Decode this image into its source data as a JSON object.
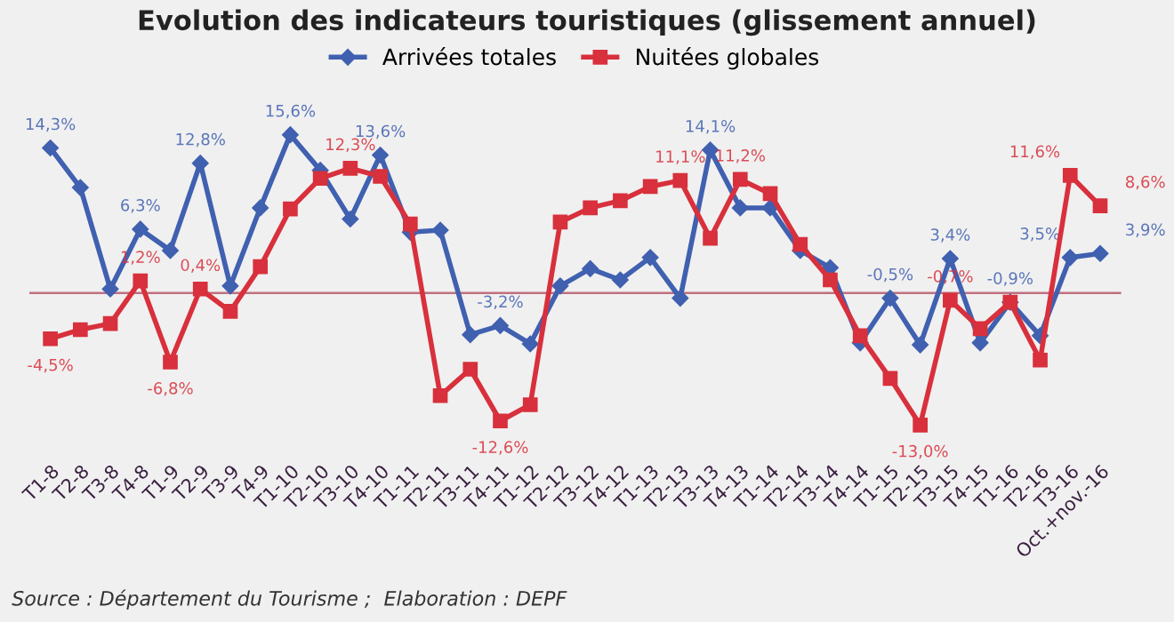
{
  "chart_data": {
    "type": "line",
    "title": "Evolution des indicateurs touristiques (glissement annuel)",
    "categories": [
      "T1-8",
      "T2-8",
      "T3-8",
      "T4-8",
      "T1-9",
      "T2-9",
      "T3-9",
      "T4-9",
      "T1-10",
      "T2-10",
      "T3-10",
      "T4-10",
      "T1-11",
      "T2-11",
      "T3-11",
      "T4-11",
      "T1-12",
      "T2-12",
      "T3-12",
      "T4-12",
      "T1-13",
      "T2-13",
      "T3-13",
      "T4-13",
      "T1-14",
      "T2-14",
      "T3-14",
      "T4-14",
      "T1-15",
      "T2-15",
      "T3-15",
      "T4-15",
      "T1-16",
      "T2-16",
      "T3-16",
      "Oct.+nov.-16"
    ],
    "series": [
      {
        "name": "Arrivées totales",
        "color": "#4060b0",
        "marker": "diamond",
        "values": [
          14.3,
          10.4,
          0.4,
          6.3,
          4.2,
          12.8,
          0.7,
          8.4,
          15.6,
          12.1,
          7.3,
          13.6,
          6.0,
          6.2,
          -4.1,
          -3.2,
          -5.0,
          0.7,
          2.4,
          1.3,
          3.5,
          -0.5,
          14.1,
          8.4,
          8.4,
          4.2,
          2.5,
          -4.9,
          -0.5,
          -5.1,
          3.4,
          -4.9,
          -0.9,
          -4.2,
          3.5,
          3.9
        ],
        "value_labels": [
          "14,3%",
          null,
          null,
          "6,3%",
          null,
          "12,8%",
          null,
          null,
          "15,6%",
          null,
          null,
          "13,6%",
          null,
          null,
          null,
          "-3,2%",
          null,
          null,
          null,
          null,
          null,
          null,
          "14,1%",
          null,
          null,
          null,
          null,
          null,
          "-0,5%",
          null,
          "3,4%",
          null,
          "-0,9%",
          null,
          "3,5%",
          "3,9%"
        ]
      },
      {
        "name": "Nuitées globales",
        "color": "#d8303c",
        "marker": "square",
        "values": [
          -4.5,
          -3.6,
          -3.0,
          1.2,
          -6.8,
          0.4,
          -1.8,
          2.6,
          8.3,
          11.3,
          12.3,
          11.5,
          6.8,
          -10.1,
          -7.5,
          -12.6,
          -11.0,
          7.0,
          8.4,
          9.1,
          10.5,
          11.1,
          5.4,
          11.2,
          9.8,
          4.8,
          1.3,
          -4.2,
          -8.4,
          -13.0,
          -0.7,
          -3.5,
          -0.9,
          -6.6,
          11.6,
          8.6
        ],
        "value_labels": [
          "-4,5%",
          null,
          null,
          "1,2%",
          "-6,8%",
          "0,4%",
          null,
          null,
          null,
          null,
          "12,3%",
          null,
          null,
          null,
          null,
          "-12,6%",
          null,
          null,
          null,
          null,
          null,
          "11,1%",
          null,
          "11,2%",
          null,
          null,
          null,
          null,
          null,
          "-13,0%",
          "-0,7%",
          null,
          null,
          null,
          "11,6%",
          "8,6%"
        ]
      }
    ],
    "ref_lines": [
      {
        "axis": "y",
        "value": 0,
        "color": "#c07080"
      }
    ],
    "legend": "top",
    "tick_labels": "x",
    "grid": false,
    "annotations": [
      "Source : Département du Tourisme ;  Elaboration : DEPF"
    ]
  }
}
